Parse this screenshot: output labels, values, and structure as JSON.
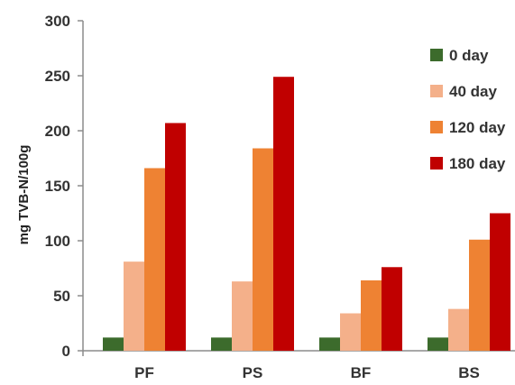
{
  "chart_data": {
    "type": "bar",
    "title": "",
    "xlabel": "",
    "ylabel": "mg TVB-N/100g",
    "ylim": [
      0,
      300
    ],
    "yticks": [
      0,
      50,
      100,
      150,
      200,
      250,
      300
    ],
    "categories": [
      "PF",
      "PS",
      "BF",
      "BS"
    ],
    "series": [
      {
        "name": "0 day",
        "color": "#3c6b2c",
        "values": [
          12,
          12,
          12,
          12
        ]
      },
      {
        "name": "40 day",
        "color": "#f4b08a",
        "values": [
          81,
          63,
          34,
          38
        ]
      },
      {
        "name": "120 day",
        "color": "#ee8233",
        "values": [
          166,
          184,
          64,
          101
        ]
      },
      {
        "name": "180 day",
        "color": "#c00000",
        "values": [
          207,
          249,
          76,
          125
        ]
      }
    ],
    "legend": "right",
    "grid": false
  }
}
